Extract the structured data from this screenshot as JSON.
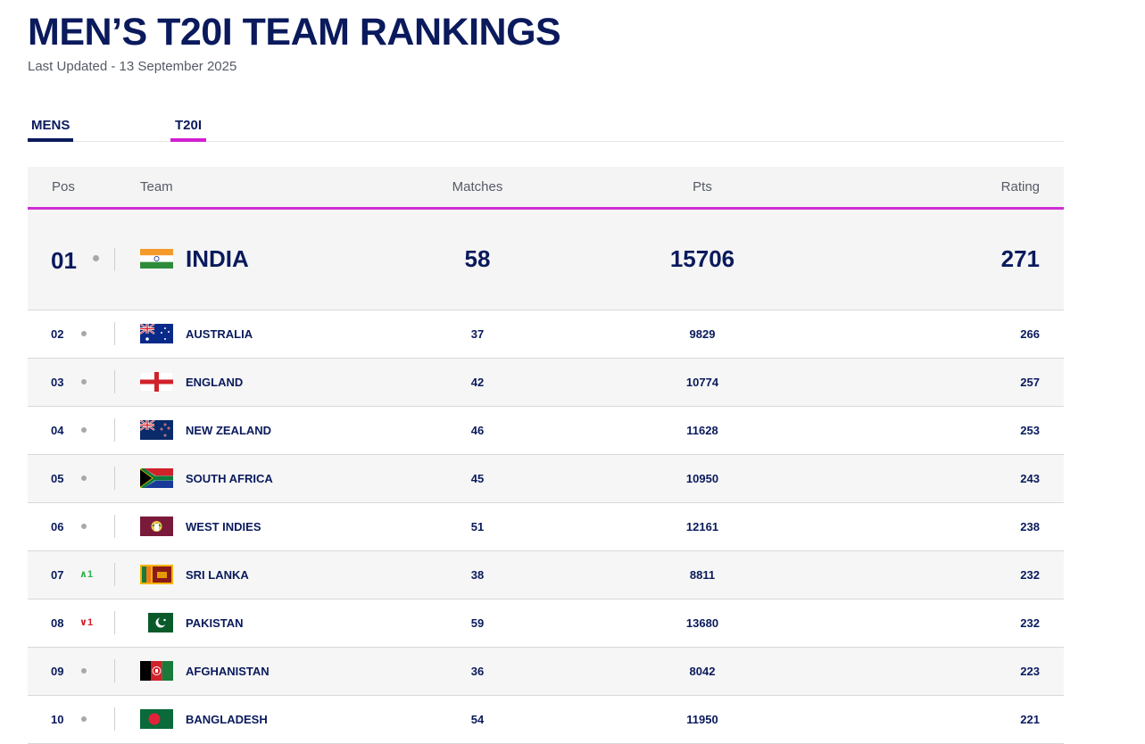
{
  "page": {
    "title": "MEN’S T20I TEAM RANKINGS",
    "last_updated": "Last Updated - 13 September 2025"
  },
  "tabs": [
    {
      "label": "MENS",
      "active": true,
      "accent": "#0a1a5c"
    },
    {
      "label": "T20I",
      "active": true,
      "accent": "#d21fd2"
    }
  ],
  "table": {
    "headers": {
      "pos": "Pos",
      "team": "Team",
      "matches": "Matches",
      "pts": "Pts",
      "rating": "Rating"
    },
    "rows": [
      {
        "pos": "01",
        "movement": "none",
        "flag": "india-flag-icon",
        "team": "INDIA",
        "matches": "58",
        "pts": "15706",
        "rating": "271"
      },
      {
        "pos": "02",
        "movement": "none",
        "flag": "australia-flag-icon",
        "team": "AUSTRALIA",
        "matches": "37",
        "pts": "9829",
        "rating": "266"
      },
      {
        "pos": "03",
        "movement": "none",
        "flag": "england-flag-icon",
        "team": "ENGLAND",
        "matches": "42",
        "pts": "10774",
        "rating": "257"
      },
      {
        "pos": "04",
        "movement": "none",
        "flag": "new-zealand-flag-icon",
        "team": "NEW ZEALAND",
        "matches": "46",
        "pts": "11628",
        "rating": "253"
      },
      {
        "pos": "05",
        "movement": "none",
        "flag": "south-africa-flag-icon",
        "team": "SOUTH AFRICA",
        "matches": "45",
        "pts": "10950",
        "rating": "243"
      },
      {
        "pos": "06",
        "movement": "none",
        "flag": "west-indies-flag-icon",
        "team": "WEST INDIES",
        "matches": "51",
        "pts": "12161",
        "rating": "238"
      },
      {
        "pos": "07",
        "movement": "up",
        "movement_text": "1",
        "flag": "sri-lanka-flag-icon",
        "team": "SRI LANKA",
        "matches": "38",
        "pts": "8811",
        "rating": "232"
      },
      {
        "pos": "08",
        "movement": "down",
        "movement_text": "1",
        "flag": "pakistan-flag-icon",
        "team": "PAKISTAN",
        "matches": "59",
        "pts": "13680",
        "rating": "232"
      },
      {
        "pos": "09",
        "movement": "none",
        "flag": "afghanistan-flag-icon",
        "team": "AFGHANISTAN",
        "matches": "36",
        "pts": "8042",
        "rating": "223"
      },
      {
        "pos": "10",
        "movement": "none",
        "flag": "bangladesh-flag-icon",
        "team": "BANGLADESH",
        "matches": "54",
        "pts": "11950",
        "rating": "221"
      }
    ]
  },
  "colors": {
    "text": "#0a1a5c",
    "accent": "#cf2fd3",
    "up": "#2fb34a",
    "down": "#d0222a"
  }
}
